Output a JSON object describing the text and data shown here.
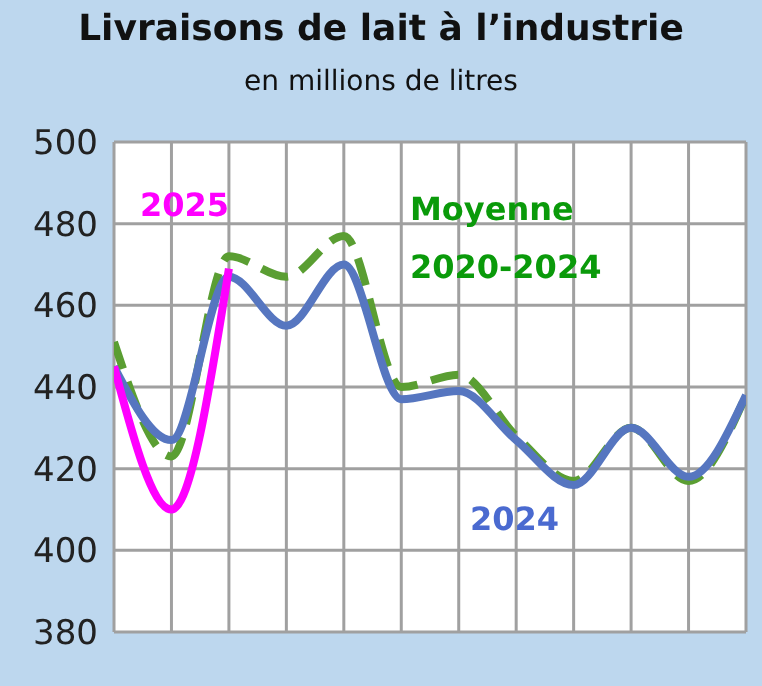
{
  "chart_data": {
    "type": "line",
    "title": "Livraisons de lait à l’industrie",
    "subtitle": "en millions de litres",
    "categories": [
      null,
      null,
      null,
      null,
      null,
      null,
      null,
      null,
      null,
      null,
      null,
      null
    ],
    "series": [
      {
        "name": "Moyenne 2020-2024",
        "color": "#5a9e32",
        "line_style": "dashed",
        "values": [
          451,
          423,
          472,
          467,
          477,
          440,
          443,
          428,
          417,
          430,
          417,
          438
        ]
      },
      {
        "name": "2024",
        "color": "#5676c0",
        "values": [
          445,
          427,
          467,
          455,
          470,
          437,
          439,
          427,
          416,
          430,
          418,
          438
        ]
      },
      {
        "name": "2025",
        "color": "#ff00ff",
        "values": [
          445,
          410,
          469,
          null,
          null,
          null,
          null,
          null,
          null,
          null,
          null,
          null
        ]
      }
    ],
    "ylim": [
      380,
      500
    ],
    "yticks": [
      380,
      400,
      420,
      440,
      460,
      480,
      500
    ],
    "grid": true,
    "legend": false,
    "marker": "none",
    "line_style": "solid"
  }
}
